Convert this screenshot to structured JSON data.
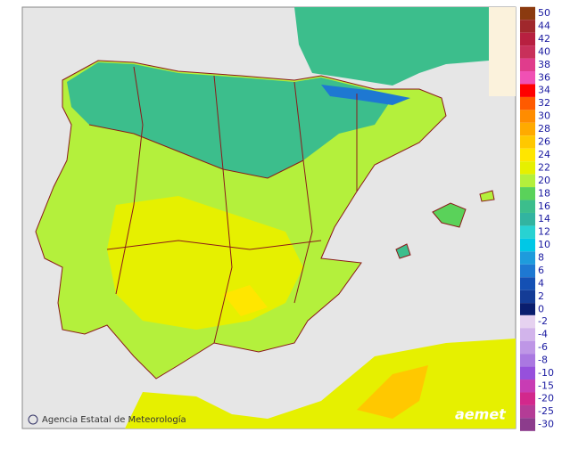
{
  "legend": {
    "upper": [
      {
        "value": 50,
        "color": "#8b3a0f"
      },
      {
        "value": 44,
        "color": "#a0282c"
      },
      {
        "value": 42,
        "color": "#b82040"
      },
      {
        "value": 40,
        "color": "#c8305a"
      },
      {
        "value": 38,
        "color": "#e03c8c"
      },
      {
        "value": 36,
        "color": "#f050b4"
      },
      {
        "value": 34,
        "color": "#ff0000"
      },
      {
        "value": 32,
        "color": "#ff5a00"
      },
      {
        "value": 30,
        "color": "#ff8c00"
      },
      {
        "value": 28,
        "color": "#ffaa00"
      },
      {
        "value": 26,
        "color": "#ffc800"
      },
      {
        "value": 24,
        "color": "#ffe600"
      },
      {
        "value": 22,
        "color": "#e6f000"
      },
      {
        "value": 20,
        "color": "#b4f03c"
      },
      {
        "value": 18,
        "color": "#5ad25a"
      },
      {
        "value": 16,
        "color": "#3cbe8c"
      },
      {
        "value": 14,
        "color": "#32b4a0"
      },
      {
        "value": 12,
        "color": "#28d2d2"
      },
      {
        "value": 10,
        "color": "#00c8e6"
      },
      {
        "value": 8,
        "color": "#1e9bdc"
      },
      {
        "value": 6,
        "color": "#1e78d2"
      },
      {
        "value": 4,
        "color": "#1450b4"
      },
      {
        "value": 2,
        "color": "#143c96"
      },
      {
        "value": 0,
        "color": "#0a1e6e"
      }
    ],
    "lower": [
      {
        "value": -2,
        "color": "#e6d2f0"
      },
      {
        "value": -4,
        "color": "#d2b4eb"
      },
      {
        "value": -6,
        "color": "#be96e6"
      },
      {
        "value": -8,
        "color": "#aa78e1"
      },
      {
        "value": -10,
        "color": "#9650dc"
      },
      {
        "value": -15,
        "color": "#c83cb4"
      },
      {
        "value": -20,
        "color": "#d2288c"
      },
      {
        "value": -25,
        "color": "#b43c96"
      },
      {
        "value": -30,
        "color": "#8c3c8c"
      }
    ]
  },
  "credit": "Agencia Estatal de Meteorología",
  "logo": "aemet"
}
